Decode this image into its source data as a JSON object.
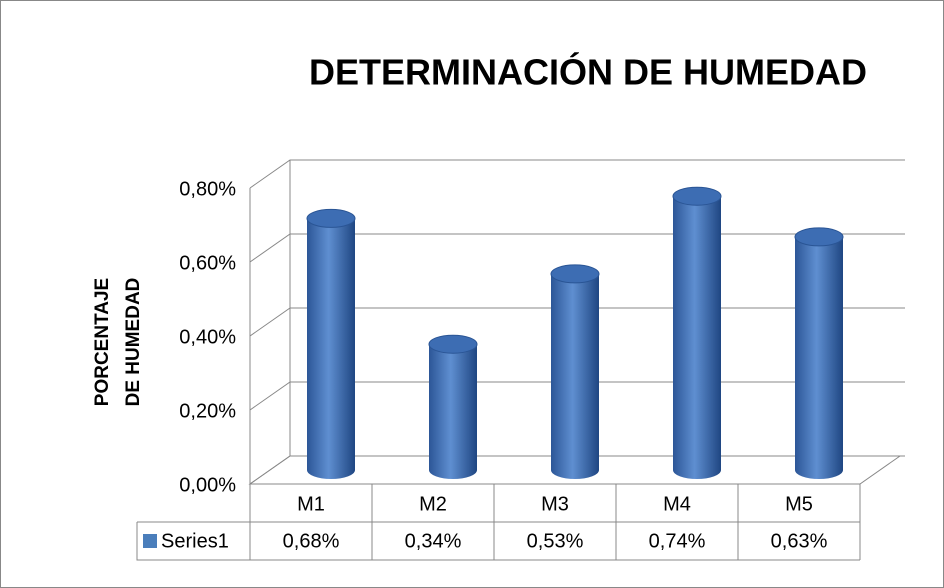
{
  "chart_data": {
    "type": "bar3d",
    "title": "DETERMINACIÓN DE HUMEDAD",
    "ylabel": [
      "PORCENTAJE",
      "DE HUMEDAD"
    ],
    "categories": [
      "M1",
      "M2",
      "M3",
      "M4",
      "M5"
    ],
    "series": [
      {
        "name": "Series1",
        "color": "#4a7ebb",
        "values": [
          0.68,
          0.34,
          0.53,
          0.74,
          0.63
        ],
        "value_labels": [
          "0,68%",
          "0,34%",
          "0,53%",
          "0,74%",
          "0,63%"
        ]
      }
    ],
    "ylim": [
      0,
      0.8
    ],
    "yticks": [
      {
        "value": 0,
        "label": "0,00%"
      },
      {
        "value": 0.2,
        "label": "0,20%"
      },
      {
        "value": 0.4,
        "label": "0,40%"
      },
      {
        "value": 0.6,
        "label": "0,60%"
      },
      {
        "value": 0.8,
        "label": "0,80%"
      }
    ],
    "grid": true
  }
}
